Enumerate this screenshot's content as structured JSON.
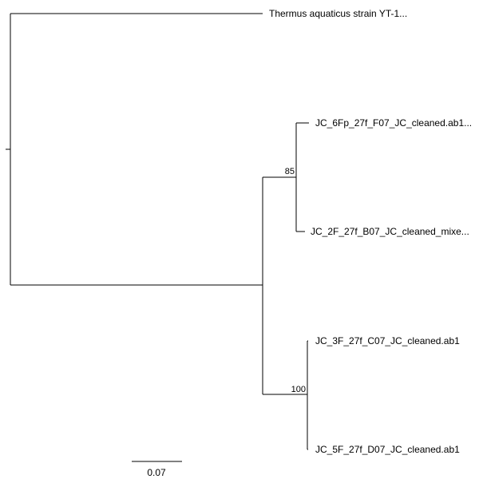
{
  "tree": {
    "taxa": [
      {
        "id": "taxon-thermus",
        "label": "Thermus aquaticus strain YT-1..."
      },
      {
        "id": "taxon-6fp",
        "label": "JC_6Fp_27f_F07_JC_cleaned.ab1..."
      },
      {
        "id": "taxon-2f",
        "label": "JC_2F_27f_B07_JC_cleaned_mixe..."
      },
      {
        "id": "taxon-3f",
        "label": "JC_3F_27f_C07_JC_cleaned.ab1"
      },
      {
        "id": "taxon-5f",
        "label": "JC_5F_27f_D07_JC_cleaned.ab1"
      }
    ],
    "support_values": [
      {
        "id": "support-clade-6fp-2f",
        "value": "85"
      },
      {
        "id": "support-clade-3f-5f",
        "value": "100"
      }
    ],
    "scale_bar": {
      "label": "0.07",
      "length": 0.07
    }
  },
  "colors": {
    "branch": "#000000",
    "text": "#000000",
    "background": "#ffffff"
  }
}
